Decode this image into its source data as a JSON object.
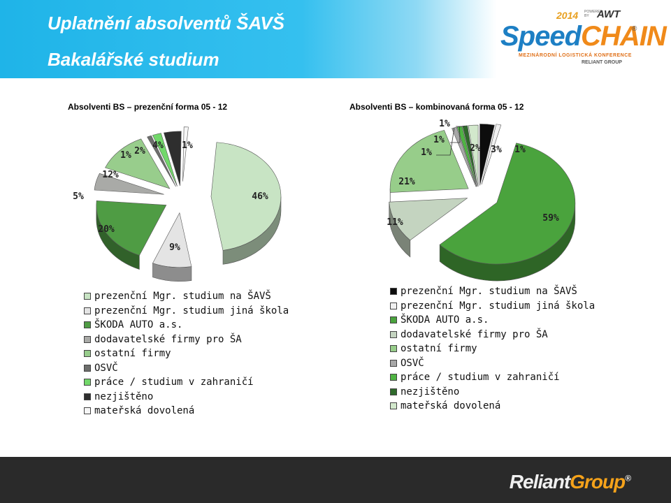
{
  "header": {
    "title": "Uplatnění absolventů ŠAVŠ",
    "subtitle": "Bakalářské studium"
  },
  "logo": {
    "year": "2014",
    "powered": "POWERED BY",
    "sponsor": "AWT",
    "name_part1": "Speed",
    "name_part2": "CHAIN",
    "reg": "®",
    "tagline": "MEZINÁRODNÍ LOGISTICKÁ KONFERENCE",
    "group": "RELIANT GROUP"
  },
  "footer": {
    "brand_part1": "Reliant",
    "brand_part2": "Group",
    "reg": "®"
  },
  "colors": {
    "header_blue": "#1fb4e8",
    "footer_dark": "#2a2a2a"
  },
  "chart_data": [
    {
      "type": "pie",
      "title": "Absolventi BS – prezenční forma 05 - 12",
      "legend_position": "bottom",
      "slices": [
        {
          "label": "prezenční Mgr. studium na ŠAVŠ",
          "value": 46,
          "display": "46%",
          "color": "#c8e4c4"
        },
        {
          "label": "prezenční Mgr. studium jiná škola",
          "value": 9,
          "display": "9%",
          "color": "#e4e4e4"
        },
        {
          "label": "ŠKODA AUTO a.s.",
          "value": 20,
          "display": "20%",
          "color": "#4f9c44"
        },
        {
          "label": "dodavatelské firmy pro ŠA",
          "value": 5,
          "display": "5%",
          "color": "#a9aaa7"
        },
        {
          "label": "ostatní firmy",
          "value": 12,
          "display": "12%",
          "color": "#98cd8c"
        },
        {
          "label": "OSVČ",
          "value": 1,
          "display": "1%",
          "color": "#6d6e6c"
        },
        {
          "label": "práce / studium v zahraničí",
          "value": 2,
          "display": "2%",
          "color": "#72d86a"
        },
        {
          "label": "nezjištěno",
          "value": 4,
          "display": "4%",
          "color": "#2e2e2e"
        },
        {
          "label": "mateřská dovolená",
          "value": 1,
          "display": "1%",
          "color": "#f6f6f6"
        }
      ]
    },
    {
      "type": "pie",
      "title": "Absolventi BS – kombinovaná forma 05 - 12",
      "legend_position": "bottom",
      "slices": [
        {
          "label": "prezenční Mgr. studium na ŠAVŠ",
          "value": 3,
          "display": "3%",
          "color": "#0d0d0d"
        },
        {
          "label": "prezenční Mgr. studium jiná škola",
          "value": 1,
          "display": "1%",
          "color": "#f1f1f1"
        },
        {
          "label": "ŠKODA AUTO a.s.",
          "value": 59,
          "display": "59%",
          "color": "#4aa33d"
        },
        {
          "label": "dodavatelské firmy pro ŠA",
          "value": 11,
          "display": "11%",
          "color": "#c4d4c0"
        },
        {
          "label": "ostatní firmy",
          "value": 21,
          "display": "21%",
          "color": "#97cd8a"
        },
        {
          "label": "OSVČ",
          "value": 1,
          "display": "1%",
          "color": "#a7a7a7"
        },
        {
          "label": "práce / studium v zahraničí",
          "value": 1,
          "display": "1%",
          "color": "#4fb443"
        },
        {
          "label": "nezjištěno",
          "value": 1,
          "display": "1%",
          "color": "#2f6a2b"
        },
        {
          "label": "mateřská dovolená",
          "value": 2,
          "display": "2%",
          "color": "#d2e8cc"
        }
      ]
    }
  ]
}
